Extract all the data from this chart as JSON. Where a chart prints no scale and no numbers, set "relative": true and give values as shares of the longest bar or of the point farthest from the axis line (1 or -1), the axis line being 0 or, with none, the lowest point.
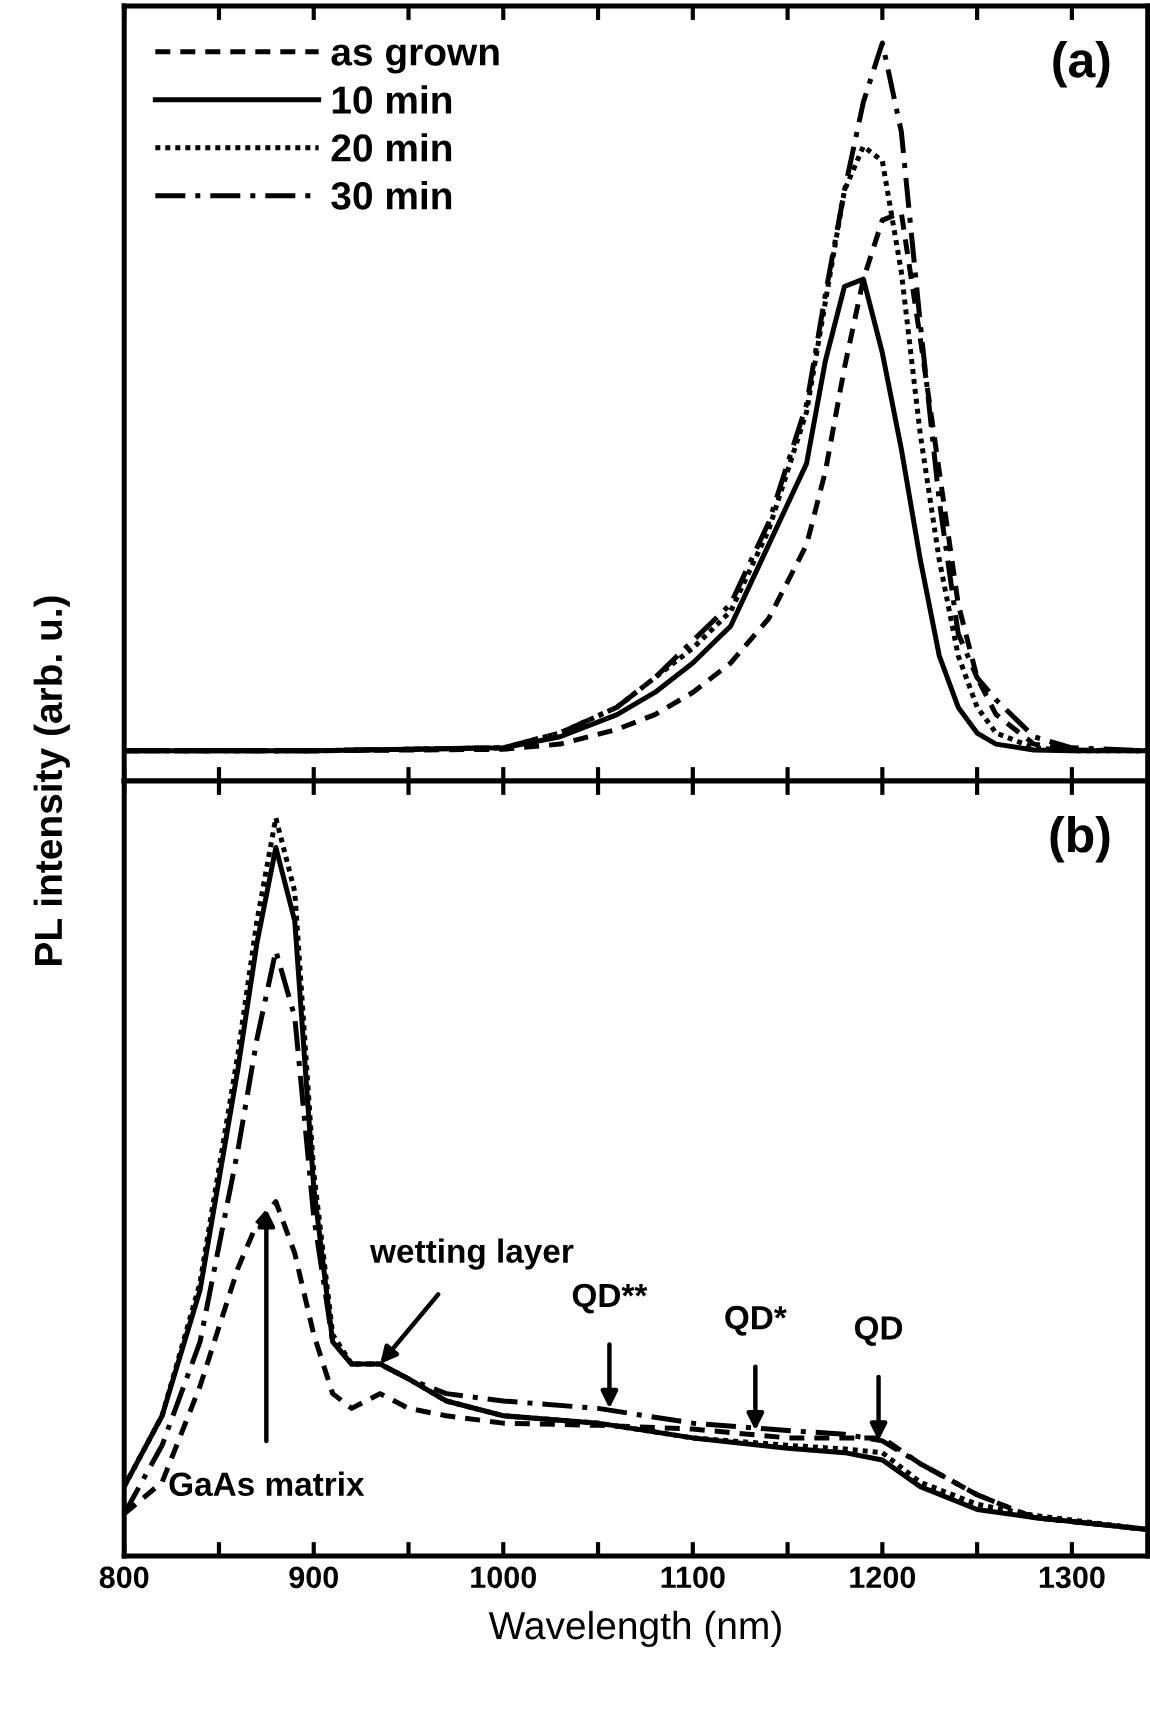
{
  "chart_data": [
    {
      "type": "line",
      "relative": true,
      "ylabel": "PL intensity (arb. u.)",
      "legend": "top left",
      "tick_labels": false,
      "grid": false,
      "annotations": [
        "(a)"
      ],
      "xlim": [
        800,
        1340
      ],
      "xticks": [
        {
          "value": 800,
          "label": null
        },
        {
          "value": 850,
          "label": null
        },
        {
          "value": 900,
          "label": null
        },
        {
          "value": 950,
          "label": null
        },
        {
          "value": 1000,
          "label": null
        },
        {
          "value": 1050,
          "label": null
        },
        {
          "value": 1100,
          "label": null
        },
        {
          "value": 1150,
          "label": null
        },
        {
          "value": 1200,
          "label": null
        },
        {
          "value": 1250,
          "label": null
        },
        {
          "value": 1300,
          "label": null
        }
      ],
      "x": [
        800,
        900,
        1000,
        1030,
        1060,
        1080,
        1100,
        1120,
        1140,
        1160,
        1170,
        1180,
        1190,
        1200,
        1210,
        1220,
        1230,
        1240,
        1250,
        1260,
        1280,
        1300,
        1340
      ],
      "series": [
        {
          "name": "as grown",
          "color": "#000000",
          "line_style": "dashed",
          "values": [
            0.041,
            0.041,
            0.043,
            0.05,
            0.07,
            0.09,
            0.12,
            0.16,
            0.22,
            0.32,
            0.42,
            0.56,
            0.68,
            0.76,
            0.77,
            0.6,
            0.42,
            0.24,
            0.14,
            0.09,
            0.05,
            0.042,
            0.041
          ]
        },
        {
          "name": "10 min",
          "color": "#000000",
          "line_style": "solid",
          "values": [
            0.041,
            0.041,
            0.045,
            0.06,
            0.09,
            0.12,
            0.16,
            0.21,
            0.32,
            0.43,
            0.57,
            0.67,
            0.68,
            0.58,
            0.45,
            0.3,
            0.17,
            0.1,
            0.065,
            0.05,
            0.042,
            0.041,
            0.041
          ]
        },
        {
          "name": "20 min",
          "color": "#000000",
          "line_style": "dotted",
          "values": [
            0.041,
            0.041,
            0.045,
            0.065,
            0.1,
            0.14,
            0.18,
            0.23,
            0.34,
            0.5,
            0.65,
            0.8,
            0.86,
            0.84,
            0.69,
            0.47,
            0.3,
            0.17,
            0.1,
            0.065,
            0.045,
            0.041,
            0.041
          ]
        },
        {
          "name": "30 min",
          "color": "#000000",
          "line_style": "dashdot",
          "values": [
            0.041,
            0.041,
            0.045,
            0.065,
            0.1,
            0.14,
            0.19,
            0.24,
            0.35,
            0.51,
            0.66,
            0.8,
            0.92,
            1.0,
            0.88,
            0.62,
            0.38,
            0.2,
            0.14,
            0.11,
            0.06,
            0.045,
            0.041
          ]
        }
      ]
    },
    {
      "type": "line",
      "relative": true,
      "xlabel": "Wavelength (nm)",
      "legend": false,
      "tick_labels": "x",
      "grid": false,
      "annotations": [
        "(b)",
        {
          "text": "GaAs matrix",
          "x": 875,
          "y": 0.47
        },
        {
          "text": "wetting layer",
          "x": 935,
          "y": 0.26
        },
        {
          "text": "QD**",
          "x": 1056,
          "y": 0.2
        },
        {
          "text": "QD*",
          "x": 1133,
          "y": 0.17
        },
        {
          "text": "QD",
          "x": 1198,
          "y": 0.156
        }
      ],
      "xlim": [
        800,
        1340
      ],
      "xticks": [
        800,
        {
          "value": 850,
          "label": null
        },
        900,
        {
          "value": 950,
          "label": null
        },
        1000,
        {
          "value": 1050,
          "label": null
        },
        1100,
        {
          "value": 1150,
          "label": null
        },
        1200,
        {
          "value": 1250,
          "label": null
        },
        1300
      ],
      "x": [
        800,
        820,
        840,
        860,
        870,
        880,
        890,
        900,
        910,
        920,
        935,
        950,
        970,
        1000,
        1050,
        1100,
        1150,
        1180,
        1200,
        1220,
        1250,
        1280,
        1340
      ],
      "series": [
        {
          "color": "#000000",
          "line_style": "dashed",
          "values": [
            0.057,
            0.1,
            0.23,
            0.39,
            0.45,
            0.48,
            0.41,
            0.3,
            0.22,
            0.2,
            0.22,
            0.2,
            0.19,
            0.18,
            0.177,
            0.172,
            0.16,
            0.16,
            0.16,
            0.125,
            0.083,
            0.052,
            0.036
          ]
        },
        {
          "color": "#000000",
          "line_style": "solid",
          "values": [
            0.094,
            0.19,
            0.36,
            0.66,
            0.83,
            0.96,
            0.86,
            0.5,
            0.29,
            0.26,
            0.26,
            0.24,
            0.21,
            0.19,
            0.18,
            0.16,
            0.146,
            0.14,
            0.13,
            0.094,
            0.063,
            0.052,
            0.036
          ]
        },
        {
          "color": "#000000",
          "line_style": "dotted",
          "values": [
            0.094,
            0.19,
            0.37,
            0.68,
            0.86,
            1.0,
            0.9,
            0.52,
            0.3,
            0.26,
            0.26,
            0.24,
            0.21,
            0.19,
            0.18,
            0.16,
            0.15,
            0.145,
            0.14,
            0.1,
            0.07,
            0.055,
            0.036
          ]
        },
        {
          "color": "#000000",
          "line_style": "dashdot",
          "values": [
            0.057,
            0.15,
            0.29,
            0.55,
            0.7,
            0.82,
            0.73,
            0.46,
            0.29,
            0.26,
            0.26,
            0.24,
            0.22,
            0.21,
            0.2,
            0.18,
            0.17,
            0.165,
            0.156,
            0.125,
            0.083,
            0.052,
            0.036
          ]
        }
      ]
    }
  ]
}
